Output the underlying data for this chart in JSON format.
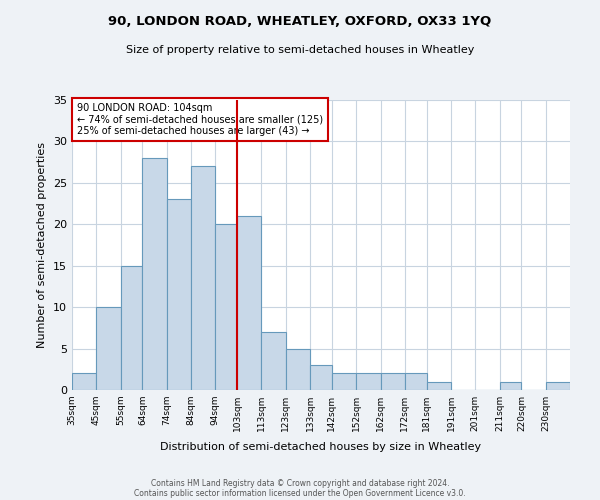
{
  "title": "90, LONDON ROAD, WHEATLEY, OXFORD, OX33 1YQ",
  "subtitle": "Size of property relative to semi-detached houses in Wheatley",
  "xlabel": "Distribution of semi-detached houses by size in Wheatley",
  "ylabel": "Number of semi-detached properties",
  "bar_color": "#c8d8e8",
  "bar_edge_color": "#6699bb",
  "annotation_title": "90 LONDON ROAD: 104sqm",
  "annotation_line1": "← 74% of semi-detached houses are smaller (125)",
  "annotation_line2": "25% of semi-detached houses are larger (43) →",
  "vline_x": 103,
  "vline_color": "#cc0000",
  "bins": [
    35,
    45,
    55,
    64,
    74,
    84,
    94,
    103,
    113,
    123,
    133,
    142,
    152,
    162,
    172,
    181,
    191,
    201,
    211,
    220,
    230
  ],
  "counts": [
    2,
    10,
    15,
    28,
    23,
    27,
    20,
    21,
    7,
    5,
    3,
    2,
    2,
    2,
    2,
    1,
    0,
    0,
    1,
    0,
    1
  ],
  "ylim": [
    0,
    35
  ],
  "yticks": [
    0,
    5,
    10,
    15,
    20,
    25,
    30,
    35
  ],
  "tick_labels": [
    "35sqm",
    "45sqm",
    "55sqm",
    "64sqm",
    "74sqm",
    "84sqm",
    "94sqm",
    "103sqm",
    "113sqm",
    "123sqm",
    "133sqm",
    "142sqm",
    "152sqm",
    "162sqm",
    "172sqm",
    "181sqm",
    "191sqm",
    "201sqm",
    "211sqm",
    "220sqm",
    "230sqm"
  ],
  "footer1": "Contains HM Land Registry data © Crown copyright and database right 2024.",
  "footer2": "Contains public sector information licensed under the Open Government Licence v3.0.",
  "background_color": "#eef2f6",
  "plot_bg_color": "#ffffff",
  "grid_color": "#c8d4e0"
}
